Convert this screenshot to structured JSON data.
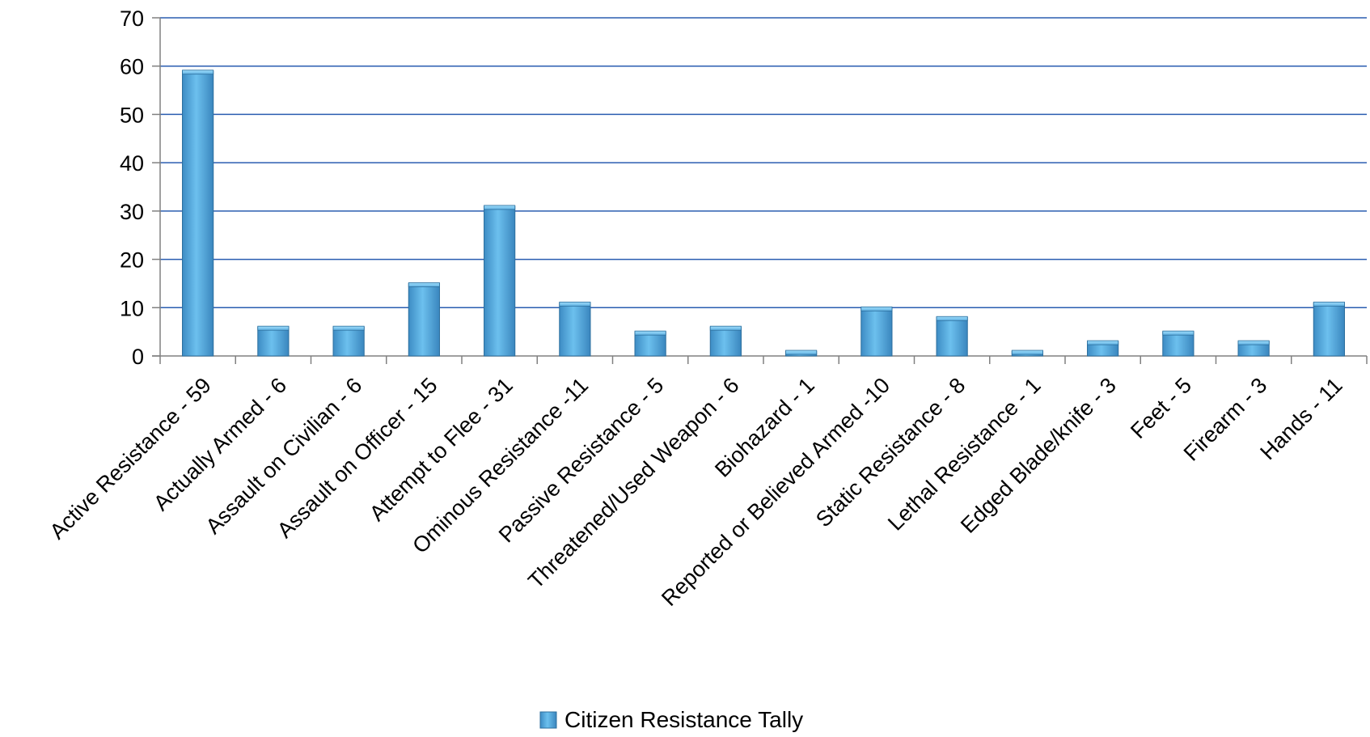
{
  "chart_data": {
    "type": "bar",
    "categories": [
      "Active Resistance - 59",
      "Actually Armed - 6",
      "Assault on Civilian - 6",
      "Assault on Officer - 15",
      "Attempt to Flee - 31",
      "Ominous Resistance -11",
      "Passive Resistance - 5",
      "Threatened/Used Weapon - 6",
      "Biohazard - 1",
      "Reported or Believed Armed -10",
      "Static Resistance - 8",
      "Lethal Resistance - 1",
      "Edged Blade/knife - 3",
      "Feet - 5",
      "Firearm - 3",
      "Hands - 11"
    ],
    "series": [
      {
        "name": "Citizen Resistance Tally",
        "values": [
          59,
          6,
          6,
          15,
          31,
          11,
          5,
          6,
          1,
          10,
          8,
          1,
          3,
          5,
          3,
          11
        ],
        "color": "#5aaee0"
      }
    ],
    "yticks": [
      "0",
      "10",
      "20",
      "30",
      "40",
      "50",
      "60",
      "70"
    ],
    "ylim": [
      0,
      70
    ],
    "grid": true,
    "gridline_color": "#2a5db0",
    "legend": "bottom"
  }
}
